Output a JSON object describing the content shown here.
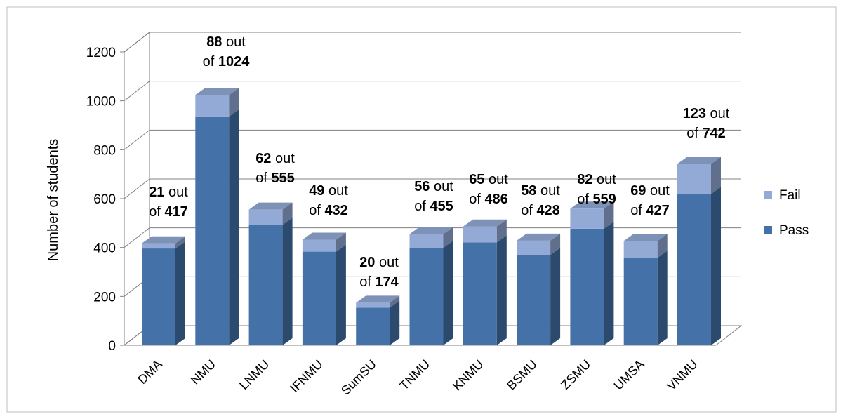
{
  "chart_data": {
    "type": "bar",
    "stacked": true,
    "three_d": true,
    "categories": [
      "DMA",
      "NMU",
      "LNMU",
      "IFNMU",
      "SumSU",
      "TNMU",
      "KNMU",
      "BSMU",
      "ZSMU",
      "UMSA",
      "VNMU"
    ],
    "series": [
      {
        "name": "Pass",
        "color": "#4472a8",
        "values": [
          396,
          936,
          493,
          383,
          154,
          399,
          421,
          370,
          477,
          358,
          619
        ]
      },
      {
        "name": "Fail",
        "color": "#94aad6",
        "values": [
          21,
          88,
          62,
          49,
          20,
          56,
          65,
          58,
          82,
          69,
          123
        ]
      }
    ],
    "annotations": [
      {
        "fail": "21",
        "total": "417"
      },
      {
        "fail": "88",
        "total": "1024"
      },
      {
        "fail": "62",
        "total": "555"
      },
      {
        "fail": "49",
        "total": "432"
      },
      {
        "fail": "20",
        "total": "174"
      },
      {
        "fail": "56",
        "total": "455"
      },
      {
        "fail": "65",
        "total": "486"
      },
      {
        "fail": "58",
        "total": "428"
      },
      {
        "fail": "82",
        "total": "559"
      },
      {
        "fail": "69",
        "total": "427"
      },
      {
        "fail": "123",
        "total": "742"
      }
    ],
    "annotation_words": {
      "out": "out",
      "of": "of"
    },
    "ylabel": "Number of students",
    "ylim": [
      0,
      1200
    ],
    "yticks": [
      "0",
      "200",
      "400",
      "600",
      "800",
      "1000",
      "1200"
    ],
    "grid": true,
    "legend": {
      "position": "right",
      "entries": [
        "Fail",
        "Pass"
      ]
    }
  }
}
